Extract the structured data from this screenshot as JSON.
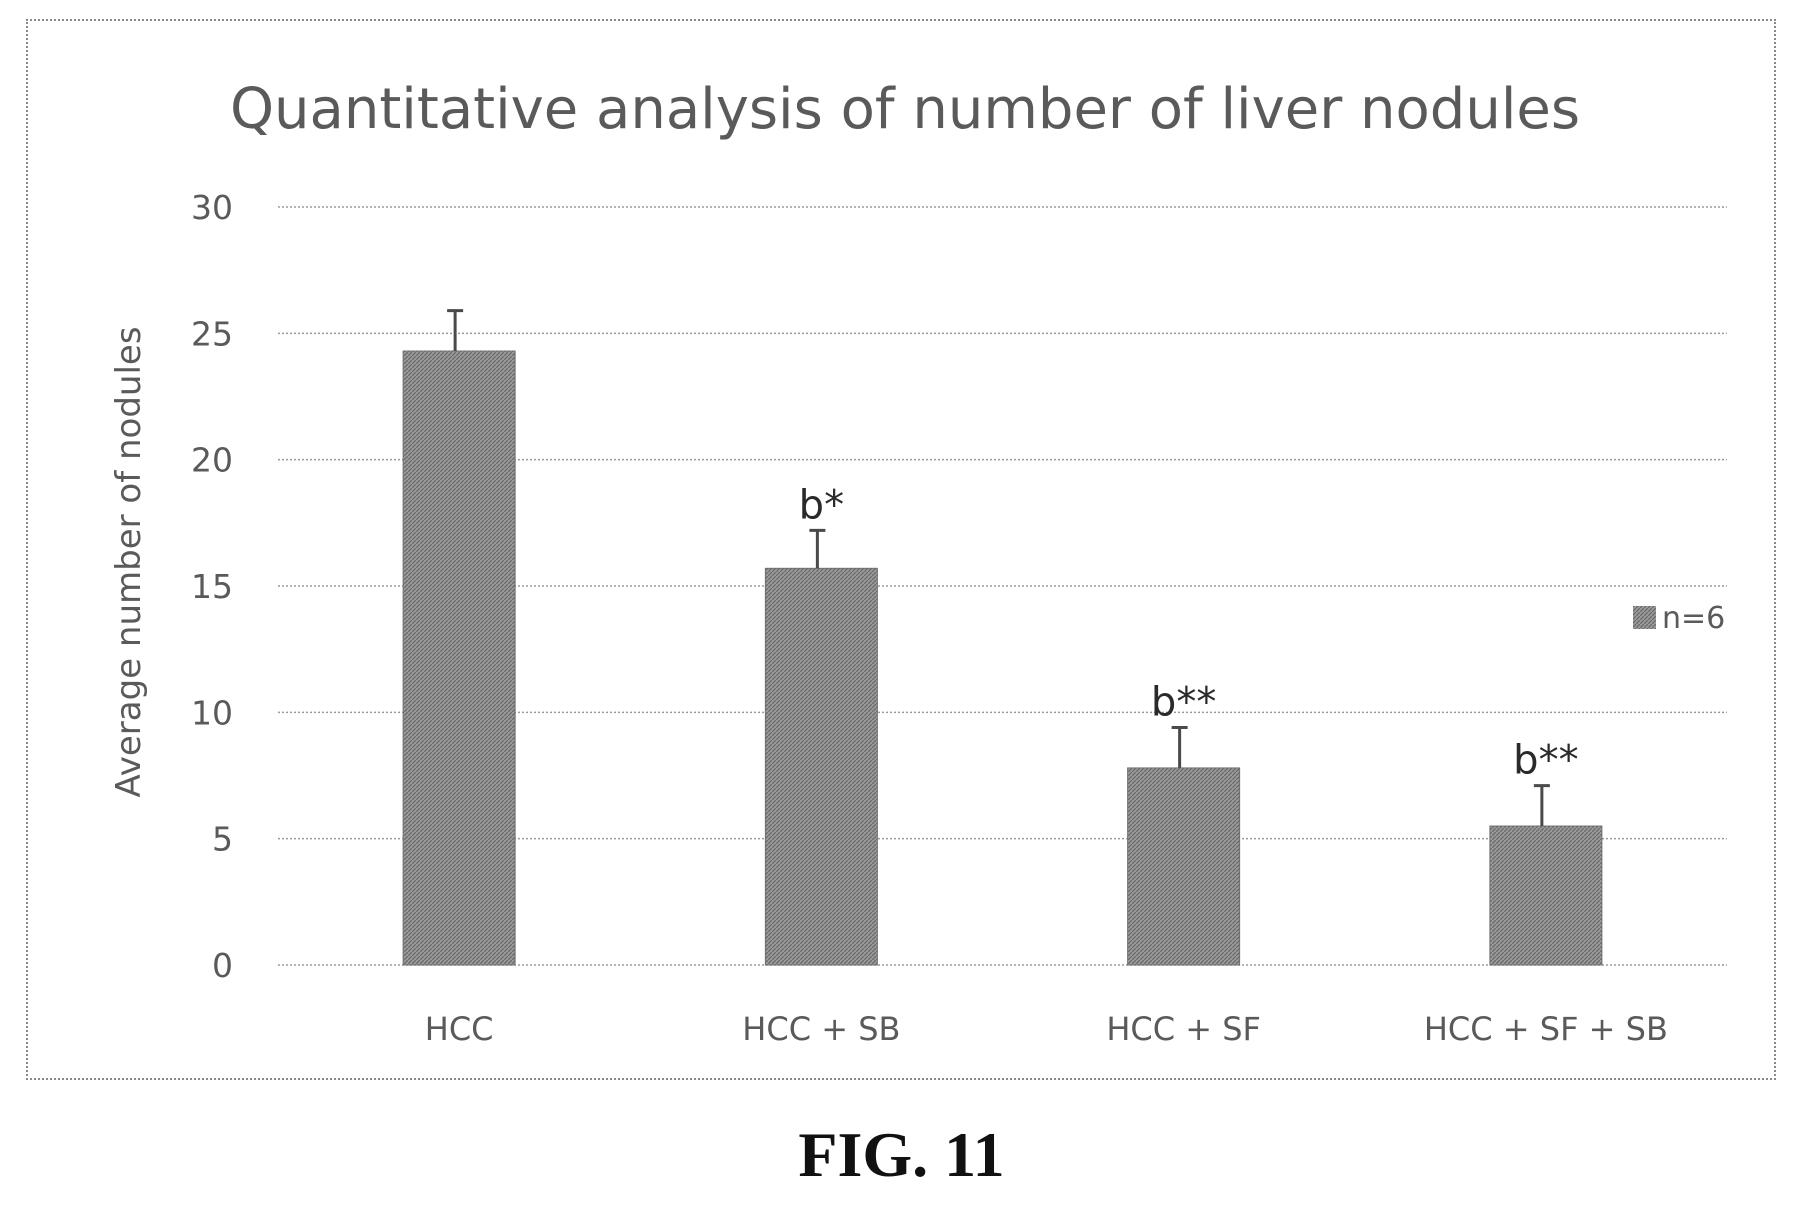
{
  "figure_caption": "FIG. 11",
  "chart_data": {
    "type": "bar",
    "title": "Quantitative analysis of number of liver nodules",
    "xlabel": "",
    "ylabel": "Average number of nodules",
    "ylim": [
      0,
      30
    ],
    "yticks": [
      0,
      5,
      10,
      15,
      20,
      25,
      30
    ],
    "grid": true,
    "legend": {
      "position": "right",
      "entries": [
        "n=6"
      ]
    },
    "categories": [
      "HCC",
      "HCC + SB",
      "HCC + SF",
      "HCC + SF + SB"
    ],
    "series": [
      {
        "name": "n=6",
        "values": [
          24.3,
          15.7,
          7.8,
          5.5
        ],
        "error": [
          1.6,
          1.5,
          1.6,
          1.6
        ],
        "annotations": [
          "",
          "b*",
          "b**",
          "b**"
        ]
      }
    ],
    "colors": {
      "bar": "#8c8c8c"
    }
  }
}
